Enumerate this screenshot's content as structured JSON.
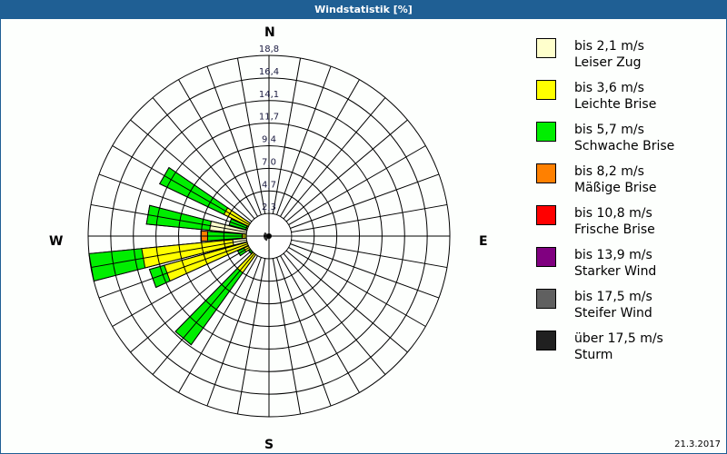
{
  "window": {
    "title": "Windstatistik [%]"
  },
  "compass": {
    "north": "N",
    "east": "E",
    "south": "S",
    "west": "W"
  },
  "footer": {
    "date": "21.3.2017"
  },
  "legend": [
    {
      "range": "bis 2,1 m/s",
      "name": "Leiser Zug",
      "color": "#ffffcc"
    },
    {
      "range": "bis 3,6 m/s",
      "name": "Leichte Brise",
      "color": "#ffff00"
    },
    {
      "range": "bis 5,7 m/s",
      "name": "Schwache Brise",
      "color": "#00ee00"
    },
    {
      "range": "bis 8,2 m/s",
      "name": "Mäßige Brise",
      "color": "#ff8000"
    },
    {
      "range": "bis 10,8 m/s",
      "name": "Frische Brise",
      "color": "#ff0000"
    },
    {
      "range": "bis 13,9 m/s",
      "name": "Starker Wind",
      "color": "#800080"
    },
    {
      "range": "bis 17,5 m/s",
      "name": "Steifer Wind",
      "color": "#606060"
    },
    {
      "range": "über 17,5 m/s",
      "name": "Sturm",
      "color": "#202020"
    }
  ],
  "chart_data": {
    "type": "polar-stacked-bar",
    "title": "Windstatistik [%]",
    "unit": "%",
    "radial_ticks": [
      "2,3",
      "4,7",
      "7,0",
      "9,4",
      "11,7",
      "14,1",
      "16,4",
      "18,8"
    ],
    "radial_max": 18.8,
    "sector_width_deg": 10,
    "series_names": [
      "bis 2,1 m/s",
      "bis 3,6 m/s",
      "bis 5,7 m/s",
      "bis 8,2 m/s",
      "bis 10,8 m/s",
      "bis 13,9 m/s",
      "bis 17,5 m/s",
      "über 17,5 m/s"
    ],
    "sectors": [
      {
        "direction_deg": 210,
        "cumulative": [
          0.3,
          1.9,
          1.9,
          1.9
        ]
      },
      {
        "direction_deg": 220,
        "cumulative": [
          0.3,
          4.7,
          13.9,
          13.9
        ]
      },
      {
        "direction_deg": 230,
        "cumulative": [
          0.3,
          2.0,
          2.6,
          2.6
        ]
      },
      {
        "direction_deg": 240,
        "cumulative": [
          0.3,
          2.9,
          3.6,
          3.6
        ]
      },
      {
        "direction_deg": 250,
        "cumulative": [
          0.3,
          11.3,
          12.9,
          12.9
        ]
      },
      {
        "direction_deg": 260,
        "cumulative": [
          3.8,
          13.3,
          18.8,
          18.8
        ]
      },
      {
        "direction_deg": 270,
        "cumulative": [
          0.3,
          2.8,
          6.4,
          7.1
        ]
      },
      {
        "direction_deg": 280,
        "cumulative": [
          6.2,
          6.2,
          12.8,
          12.8
        ]
      },
      {
        "direction_deg": 290,
        "cumulative": [
          0.5,
          2.5,
          4.3,
          4.3
        ]
      },
      {
        "direction_deg": 300,
        "cumulative": [
          0.5,
          5.2,
          12.6,
          12.6
        ]
      },
      {
        "direction_deg": 310,
        "cumulative": [
          0.3,
          1.2,
          1.2,
          1.2
        ]
      }
    ],
    "legend_position": "right"
  }
}
